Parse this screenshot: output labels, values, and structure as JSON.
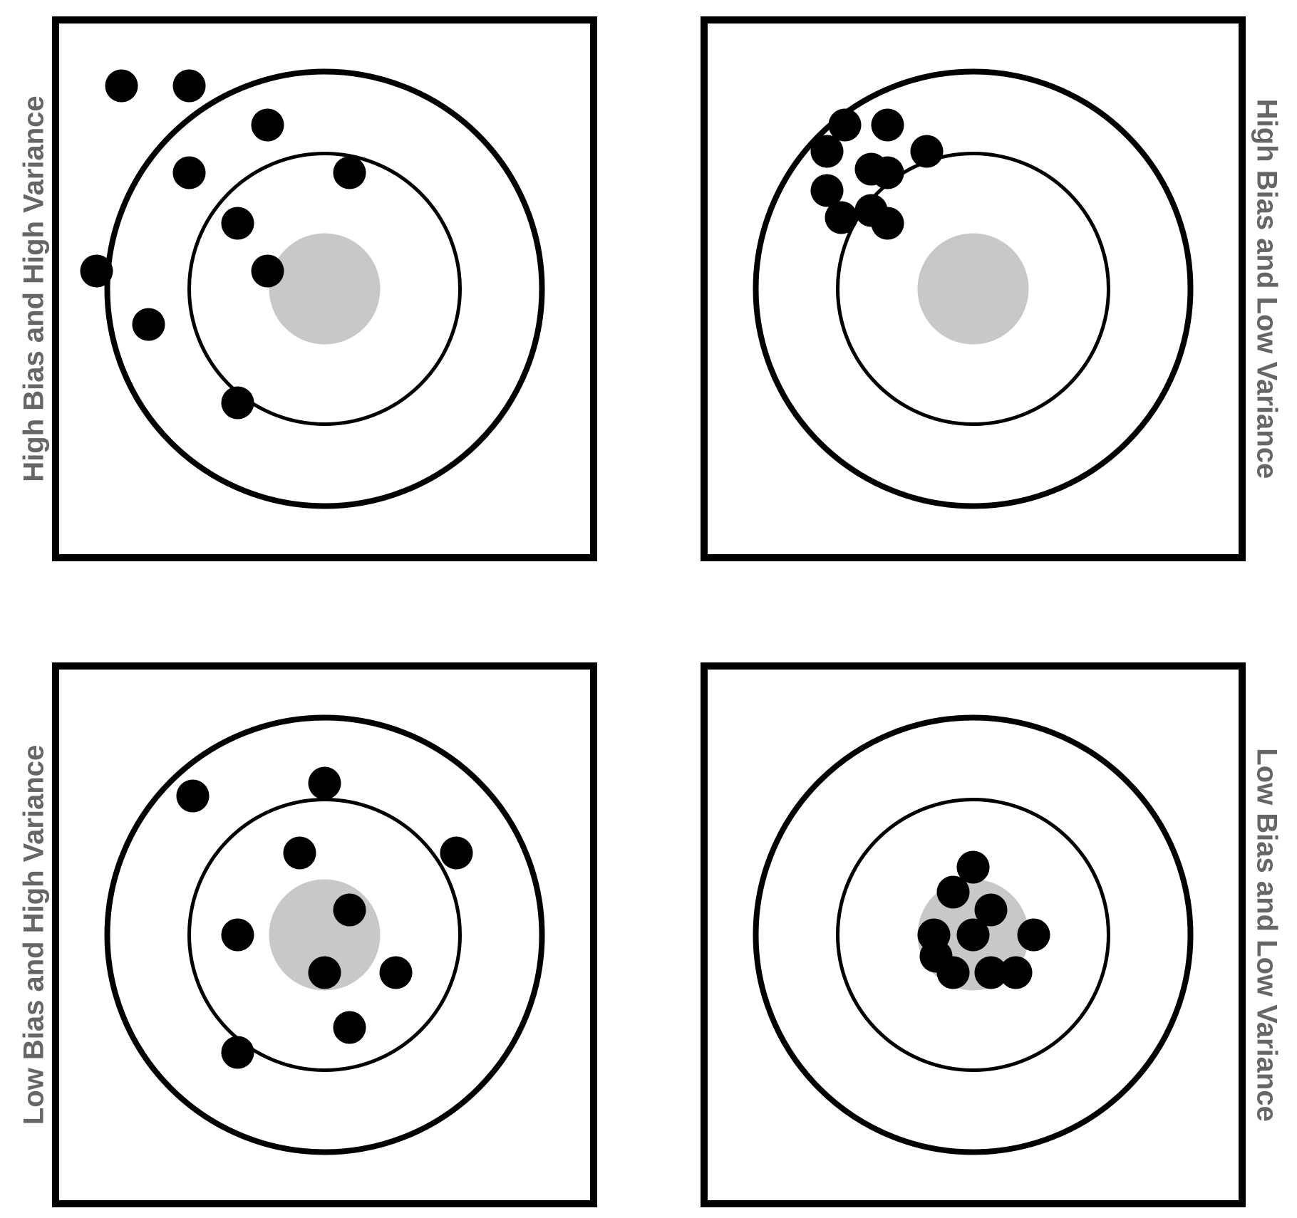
{
  "colors": {
    "frame": "#000000",
    "ring": "#000000",
    "bullseye": "#c8c8c8",
    "shot": "#000000",
    "label": "#666666",
    "background": "#ffffff"
  },
  "panels": [
    {
      "label": "High Bias and High Variance",
      "shots": [
        [
          -285,
          -285
        ],
        [
          -190,
          -285
        ],
        [
          -80,
          -230
        ],
        [
          -190,
          -163
        ],
        [
          35,
          -163
        ],
        [
          -122,
          -92
        ],
        [
          -80,
          -25
        ],
        [
          -320,
          -25
        ],
        [
          -247,
          50
        ],
        [
          -122,
          160
        ]
      ]
    },
    {
      "label": "High Bias and Low Variance",
      "shots": [
        [
          -180,
          -230
        ],
        [
          -120,
          -230
        ],
        [
          -65,
          -193
        ],
        [
          -205,
          -193
        ],
        [
          -143,
          -168
        ],
        [
          -120,
          -163
        ],
        [
          -205,
          -138
        ],
        [
          -143,
          -110
        ],
        [
          -185,
          -100
        ],
        [
          -120,
          -92
        ]
      ]
    },
    {
      "label": "Low Bias and High Variance",
      "shots": [
        [
          -185,
          -195
        ],
        [
          0,
          -213
        ],
        [
          -35,
          -115
        ],
        [
          185,
          -115
        ],
        [
          35,
          -35
        ],
        [
          -122,
          0
        ],
        [
          0,
          53
        ],
        [
          100,
          53
        ],
        [
          35,
          130
        ],
        [
          -122,
          165
        ]
      ]
    },
    {
      "label": "Low Bias and Low Variance",
      "shots": [
        [
          0,
          -95
        ],
        [
          -28,
          -60
        ],
        [
          25,
          -35
        ],
        [
          -55,
          0
        ],
        [
          0,
          0
        ],
        [
          85,
          0
        ],
        [
          -52,
          30
        ],
        [
          -28,
          53
        ],
        [
          25,
          53
        ],
        [
          60,
          53
        ]
      ]
    }
  ]
}
